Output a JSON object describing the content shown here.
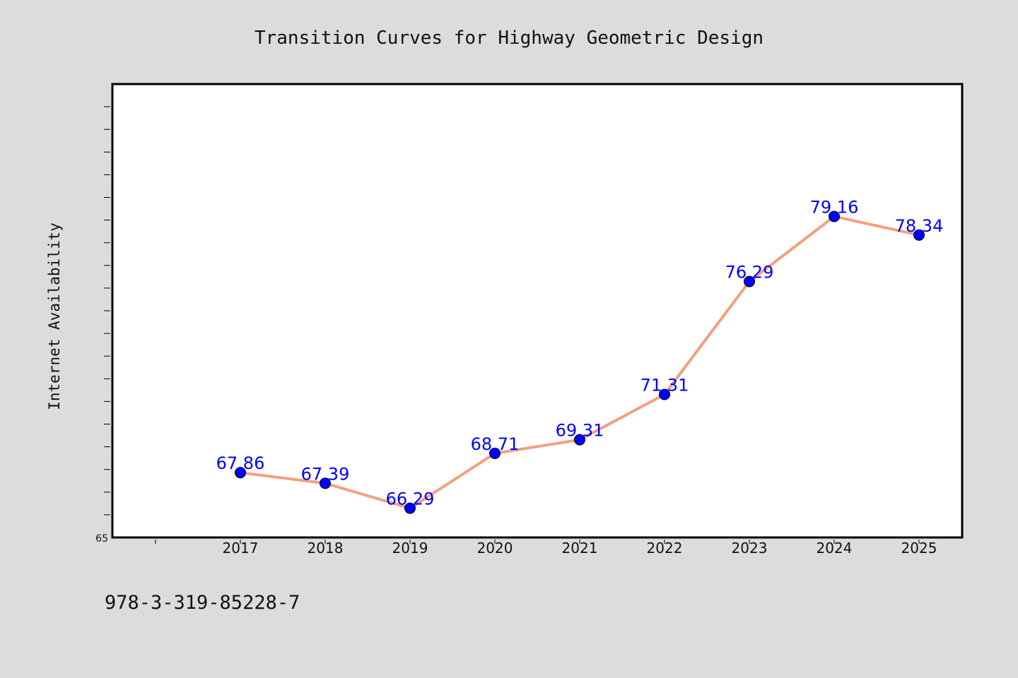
{
  "page": {
    "background": "#dcdcdc",
    "footer_code": "978-3-319-85228-7"
  },
  "chart_data": {
    "type": "line",
    "title": "Transition Curves for Highway Geometric Design",
    "xlabel": "",
    "ylabel": "Internet Availability",
    "categories": [
      "2017",
      "2018",
      "2019",
      "2020",
      "2021",
      "2022",
      "2023",
      "2024",
      "2025"
    ],
    "series": [
      {
        "values": [
          67.86,
          67.39,
          66.29,
          68.71,
          69.31,
          71.31,
          76.29,
          79.16,
          78.34
        ],
        "labels": [
          "67.86",
          "67.39",
          "66.29",
          "68.71",
          "69.31",
          "71.31",
          "76.29",
          "79.16",
          "78.34"
        ],
        "line_color": "#f4a07e",
        "marker_color": "#0000ff"
      }
    ],
    "ylim": [
      65,
      85
    ],
    "ytick_labels": [
      "65"
    ],
    "grid": false,
    "legend": "none",
    "plot_background": "#ffffff",
    "label_color": "#0000ff"
  }
}
